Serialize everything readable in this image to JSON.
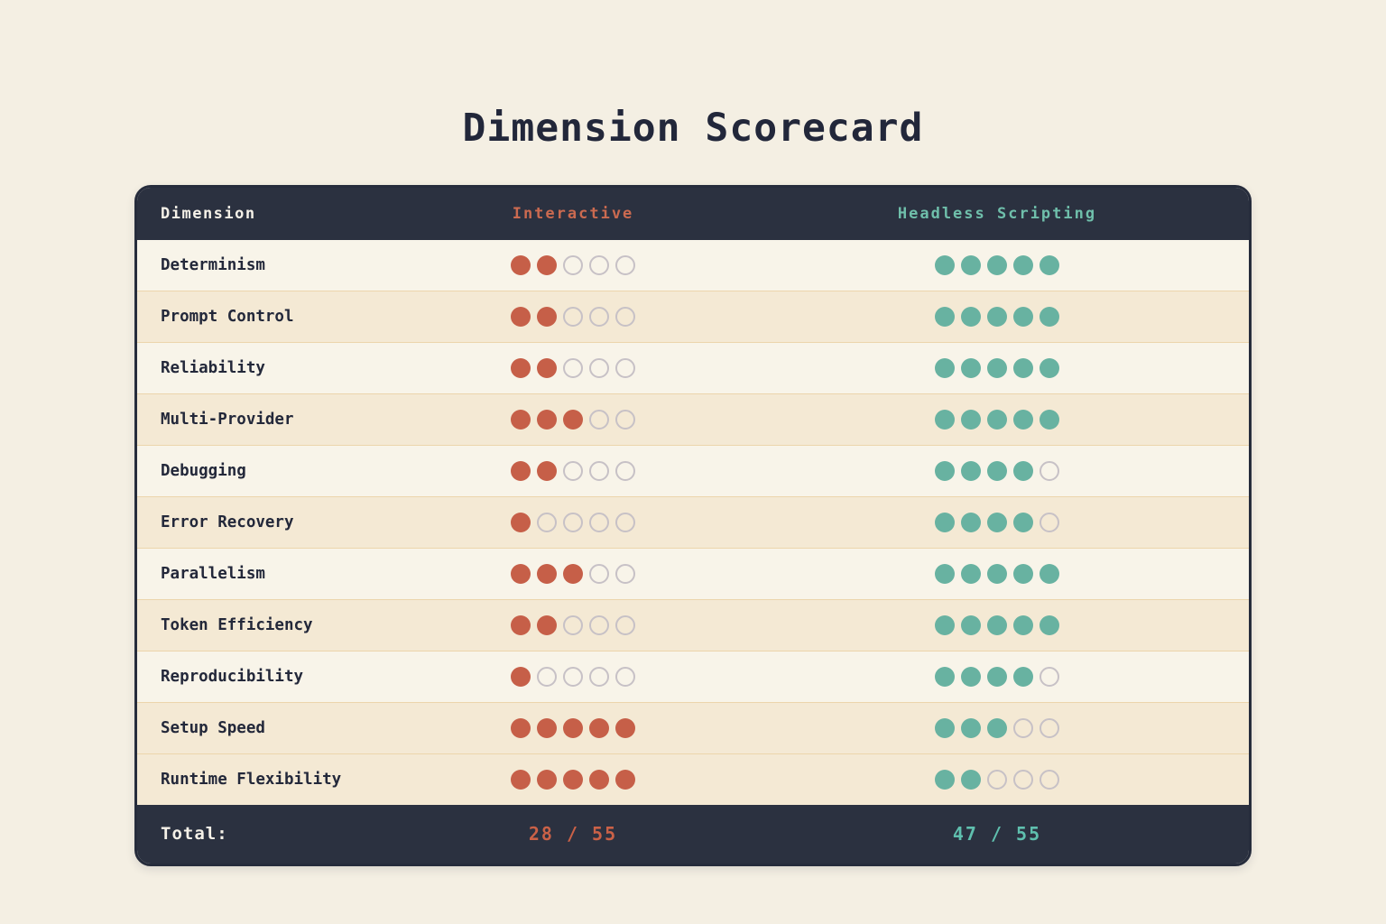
{
  "page": {
    "title": "Dimension Scorecard"
  },
  "table": {
    "header": {
      "dimension_label": "Dimension",
      "interactive_label": "Interactive",
      "headless_label": "Headless Scripting"
    },
    "footer": {
      "label": "Total:",
      "interactive_total": "28 / 55",
      "headless_total": "47 / 55"
    }
  },
  "chart_data": {
    "type": "table",
    "title": "Dimension Scorecard",
    "columns": [
      "Dimension",
      "Interactive",
      "Headless Scripting"
    ],
    "max_score": 5,
    "rows": [
      {
        "dimension": "Determinism",
        "interactive": 2,
        "headless": 5,
        "tone": "light"
      },
      {
        "dimension": "Prompt Control",
        "interactive": 2,
        "headless": 5,
        "tone": "tan"
      },
      {
        "dimension": "Reliability",
        "interactive": 2,
        "headless": 5,
        "tone": "light"
      },
      {
        "dimension": "Multi-Provider",
        "interactive": 3,
        "headless": 5,
        "tone": "tan"
      },
      {
        "dimension": "Debugging",
        "interactive": 2,
        "headless": 4,
        "tone": "light"
      },
      {
        "dimension": "Error Recovery",
        "interactive": 1,
        "headless": 4,
        "tone": "tan"
      },
      {
        "dimension": "Parallelism",
        "interactive": 3,
        "headless": 5,
        "tone": "light"
      },
      {
        "dimension": "Token Efficiency",
        "interactive": 2,
        "headless": 5,
        "tone": "tan"
      },
      {
        "dimension": "Reproducibility",
        "interactive": 1,
        "headless": 4,
        "tone": "light"
      },
      {
        "dimension": "Setup Speed",
        "interactive": 5,
        "headless": 3,
        "tone": "tan"
      },
      {
        "dimension": "Runtime Flexibility",
        "interactive": 5,
        "headless": 2,
        "tone": "tan"
      }
    ],
    "totals": {
      "interactive": 28,
      "headless": 47,
      "max_total": 55
    }
  },
  "colors": {
    "interactive_accent": "#c65f48",
    "headless_accent": "#68b2a1",
    "header_bg": "#2b3140",
    "row_light": "#f8f4e9",
    "row_tan": "#f4e9d4",
    "empty_dot_border": "#c7c1c6"
  }
}
